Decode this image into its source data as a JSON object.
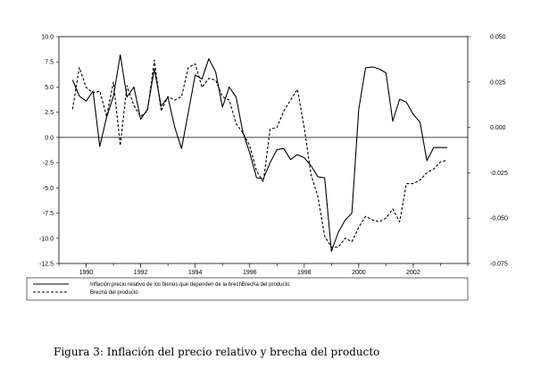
{
  "chart_data": {
    "type": "line",
    "left_axis": {
      "ylim": [
        -12.5,
        10.0
      ],
      "ticks": [
        "10.0",
        "7.5",
        "5.0",
        "2.5",
        "0.0",
        "-2.5",
        "-5.0",
        "-7.5",
        "-10.0",
        "-12.5"
      ]
    },
    "right_axis": {
      "ylim": [
        -0.075,
        0.05
      ],
      "ticks": [
        "0.050",
        "0.025",
        "0.000",
        "-0.025",
        "-0.050",
        "-0.075"
      ]
    },
    "x_ticks": [
      "1990",
      "1992",
      "1994",
      "1996",
      "1998",
      "2000",
      "2002"
    ],
    "xlim": [
      1989,
      2004
    ],
    "zero_line": true,
    "legend_placement": "below",
    "series": [
      {
        "name": "Inflación precio relativo de los bienes que dependen de la brechBrecha del producto",
        "axis": "left",
        "style": "solid",
        "x": [
          1989.5,
          1989.75,
          1990.0,
          1990.25,
          1990.5,
          1990.75,
          1991.0,
          1991.25,
          1991.5,
          1991.75,
          1992.0,
          1992.25,
          1992.5,
          1992.75,
          1993.0,
          1993.25,
          1993.5,
          1993.75,
          1994.0,
          1994.25,
          1994.5,
          1994.75,
          1995.0,
          1995.25,
          1995.5,
          1995.75,
          1996.0,
          1996.25,
          1996.5,
          1996.75,
          1997.0,
          1997.25,
          1997.5,
          1997.75,
          1998.0,
          1998.25,
          1998.5,
          1998.75,
          1999.0,
          1999.25,
          1999.5,
          1999.75,
          2000.0,
          2000.25,
          2000.5,
          2000.75,
          2001.0,
          2001.25,
          2001.5,
          2001.75,
          2002.0,
          2002.25,
          2002.5,
          2002.75,
          2003.0,
          2003.25
        ],
        "y": [
          5.7,
          4.1,
          3.6,
          4.6,
          -0.9,
          2.0,
          4.1,
          8.2,
          4.0,
          5.0,
          1.8,
          2.8,
          6.8,
          3.1,
          4.0,
          1.0,
          -1.1,
          2.5,
          6.2,
          5.8,
          7.8,
          6.5,
          3.0,
          5.0,
          4.0,
          0.5,
          -1.5,
          -4.0,
          -4.1,
          -2.5,
          -1.2,
          -1.1,
          -2.2,
          -1.7,
          -2.0,
          -2.8,
          -3.9,
          -4.0,
          -11.3,
          -9.4,
          -8.2,
          -7.5,
          2.8,
          6.9,
          7.0,
          6.8,
          6.4,
          1.6,
          3.8,
          3.5,
          2.3,
          1.5,
          -2.3,
          -1.0,
          -1.0,
          -1.0
        ]
      },
      {
        "name": "Brecha del producto",
        "axis": "right",
        "style": "dashed",
        "x": [
          1989.5,
          1989.75,
          1990.0,
          1990.25,
          1990.5,
          1990.75,
          1991.0,
          1991.25,
          1991.5,
          1991.75,
          1992.0,
          1992.25,
          1992.5,
          1992.75,
          1993.0,
          1993.25,
          1993.5,
          1993.75,
          1994.0,
          1994.25,
          1994.5,
          1994.75,
          1995.0,
          1995.25,
          1995.5,
          1995.75,
          1996.0,
          1996.25,
          1996.5,
          1996.75,
          1997.0,
          1997.25,
          1997.5,
          1997.75,
          1998.0,
          1998.25,
          1998.5,
          1998.75,
          1999.0,
          1999.25,
          1999.5,
          1999.75,
          2000.0,
          2000.25,
          2000.5,
          2000.75,
          2001.0,
          2001.25,
          2001.5,
          2001.75,
          2002.0,
          2002.25,
          2002.5,
          2002.75,
          2003.0,
          2003.25
        ],
        "y": [
          0.01,
          0.033,
          0.022,
          0.019,
          0.02,
          0.006,
          0.025,
          -0.01,
          0.023,
          0.012,
          0.006,
          0.009,
          0.037,
          0.009,
          0.017,
          0.015,
          0.017,
          0.033,
          0.035,
          0.022,
          0.027,
          0.026,
          0.017,
          0.015,
          0.002,
          -0.003,
          -0.01,
          -0.024,
          -0.03,
          -0.001,
          0.0,
          0.009,
          0.015,
          0.021,
          0.0,
          -0.026,
          -0.038,
          -0.06,
          -0.066,
          -0.066,
          -0.061,
          -0.063,
          -0.055,
          -0.049,
          -0.051,
          -0.052,
          -0.05,
          -0.045,
          -0.052,
          -0.031,
          -0.031,
          -0.029,
          -0.025,
          -0.023,
          -0.019,
          -0.018
        ]
      }
    ]
  },
  "legend": {
    "items": [
      {
        "label": "Inflación precio relativo de los bienes que dependen de la brechBrecha del producto",
        "style": "solid"
      },
      {
        "label": "Brecha del producto",
        "style": "dashed"
      }
    ]
  },
  "caption": "Figura 3: Inflación del precio relativo y brecha del producto"
}
